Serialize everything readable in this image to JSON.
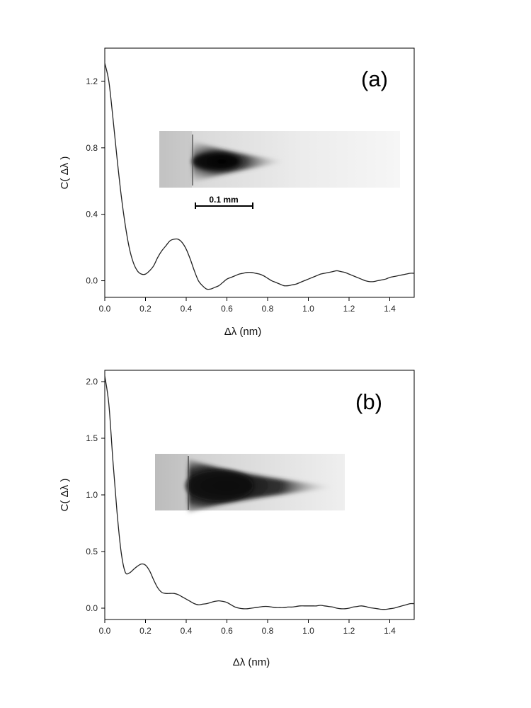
{
  "chart_data": [
    {
      "type": "line",
      "panel_label": "(a)",
      "xlabel": "Δλ  (nm)",
      "ylabel": "C( Δλ )",
      "xlim": [
        0,
        1.52
      ],
      "ylim": [
        -0.1,
        1.4
      ],
      "x_ticks": [
        0.0,
        0.2,
        0.4,
        0.6,
        0.8,
        1.0,
        1.2,
        1.4
      ],
      "y_ticks": [
        0.0,
        0.4,
        0.8,
        1.2
      ],
      "x_tick_labels": [
        "0.0",
        "0.2",
        "0.4",
        "0.6",
        "0.8",
        "1.0",
        "1.2",
        "1.4"
      ],
      "y_tick_labels": [
        "0.0",
        "0.4",
        "0.8",
        "1.2"
      ],
      "grid": false,
      "line_color": "#222222",
      "inset": {
        "type": "speckle-image",
        "scale_bar_label": "0.1 mm"
      },
      "series": [
        {
          "x": [
            0.0,
            0.02,
            0.04,
            0.06,
            0.08,
            0.1,
            0.12,
            0.14,
            0.16,
            0.18,
            0.2,
            0.22,
            0.24,
            0.26,
            0.28,
            0.3,
            0.32,
            0.34,
            0.36,
            0.38,
            0.4,
            0.42,
            0.44,
            0.46,
            0.48,
            0.5,
            0.52,
            0.54,
            0.56,
            0.58,
            0.6,
            0.62,
            0.64,
            0.66,
            0.68,
            0.7,
            0.72,
            0.74,
            0.76,
            0.78,
            0.8,
            0.82,
            0.84,
            0.86,
            0.88,
            0.9,
            0.92,
            0.94,
            0.96,
            0.98,
            1.0,
            1.02,
            1.04,
            1.06,
            1.08,
            1.1,
            1.12,
            1.14,
            1.16,
            1.18,
            1.2,
            1.22,
            1.24,
            1.26,
            1.28,
            1.3,
            1.32,
            1.34,
            1.36,
            1.38,
            1.4,
            1.42,
            1.44,
            1.46,
            1.48,
            1.5,
            1.52
          ],
          "y": [
            1.31,
            1.2,
            0.98,
            0.74,
            0.52,
            0.34,
            0.2,
            0.11,
            0.06,
            0.04,
            0.04,
            0.06,
            0.09,
            0.14,
            0.18,
            0.21,
            0.24,
            0.25,
            0.25,
            0.23,
            0.19,
            0.13,
            0.06,
            0.0,
            -0.03,
            -0.05,
            -0.05,
            -0.04,
            -0.03,
            -0.01,
            0.01,
            0.02,
            0.03,
            0.04,
            0.045,
            0.05,
            0.05,
            0.045,
            0.04,
            0.03,
            0.015,
            0.0,
            -0.01,
            -0.02,
            -0.03,
            -0.03,
            -0.025,
            -0.02,
            -0.01,
            0.0,
            0.01,
            0.02,
            0.03,
            0.04,
            0.045,
            0.05,
            0.055,
            0.06,
            0.055,
            0.05,
            0.04,
            0.03,
            0.02,
            0.01,
            0.0,
            -0.005,
            -0.005,
            0.0,
            0.005,
            0.01,
            0.02,
            0.025,
            0.03,
            0.035,
            0.04,
            0.045,
            0.045
          ]
        }
      ]
    },
    {
      "type": "line",
      "panel_label": "(b)",
      "xlabel": "Δλ  (nm)",
      "ylabel": "C( Δλ )",
      "xlim": [
        0,
        1.52
      ],
      "ylim": [
        -0.1,
        2.1
      ],
      "x_ticks": [
        0.0,
        0.2,
        0.4,
        0.6,
        0.8,
        1.0,
        1.2,
        1.4
      ],
      "y_ticks": [
        0.0,
        0.5,
        1.0,
        1.5,
        2.0
      ],
      "x_tick_labels": [
        "0.0",
        "0.2",
        "0.4",
        "0.6",
        "0.8",
        "1.0",
        "1.2",
        "1.4"
      ],
      "y_tick_labels": [
        "0.0",
        "0.5",
        "1.0",
        "1.5",
        "2.0"
      ],
      "grid": false,
      "line_color": "#222222",
      "inset": {
        "type": "speckle-image"
      },
      "series": [
        {
          "x": [
            0.0,
            0.02,
            0.04,
            0.06,
            0.08,
            0.1,
            0.12,
            0.14,
            0.16,
            0.18,
            0.2,
            0.22,
            0.24,
            0.26,
            0.28,
            0.3,
            0.32,
            0.34,
            0.36,
            0.38,
            0.4,
            0.42,
            0.44,
            0.46,
            0.48,
            0.5,
            0.52,
            0.54,
            0.56,
            0.58,
            0.6,
            0.62,
            0.64,
            0.66,
            0.68,
            0.7,
            0.72,
            0.74,
            0.76,
            0.78,
            0.8,
            0.82,
            0.84,
            0.86,
            0.88,
            0.9,
            0.92,
            0.94,
            0.96,
            0.98,
            1.0,
            1.02,
            1.04,
            1.06,
            1.08,
            1.1,
            1.12,
            1.14,
            1.16,
            1.18,
            1.2,
            1.22,
            1.24,
            1.26,
            1.28,
            1.3,
            1.32,
            1.34,
            1.36,
            1.38,
            1.4,
            1.42,
            1.44,
            1.46,
            1.48,
            1.5,
            1.52
          ],
          "y": [
            2.05,
            1.8,
            1.3,
            0.85,
            0.5,
            0.32,
            0.31,
            0.34,
            0.37,
            0.39,
            0.38,
            0.33,
            0.25,
            0.18,
            0.14,
            0.13,
            0.13,
            0.13,
            0.12,
            0.1,
            0.08,
            0.06,
            0.04,
            0.03,
            0.035,
            0.04,
            0.05,
            0.06,
            0.065,
            0.06,
            0.05,
            0.03,
            0.01,
            0.0,
            -0.005,
            -0.005,
            0.0,
            0.005,
            0.01,
            0.015,
            0.015,
            0.01,
            0.005,
            0.005,
            0.005,
            0.01,
            0.01,
            0.015,
            0.02,
            0.02,
            0.02,
            0.02,
            0.02,
            0.025,
            0.02,
            0.015,
            0.01,
            0.0,
            -0.005,
            -0.005,
            0.0,
            0.01,
            0.015,
            0.02,
            0.015,
            0.005,
            0.0,
            -0.005,
            -0.01,
            -0.01,
            -0.005,
            0.0,
            0.01,
            0.02,
            0.03,
            0.04,
            0.04
          ]
        }
      ]
    }
  ]
}
